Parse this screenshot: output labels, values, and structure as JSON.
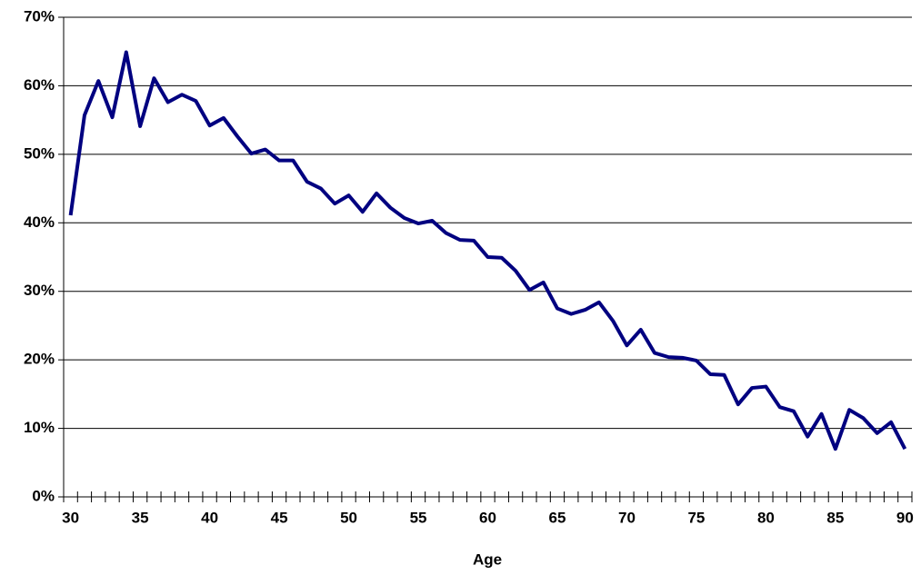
{
  "chart_data": {
    "type": "line",
    "x_label": "Age",
    "categories": [
      "30",
      null,
      null,
      null,
      null,
      "35",
      null,
      null,
      null,
      null,
      "40",
      null,
      null,
      null,
      null,
      "45",
      null,
      null,
      null,
      null,
      "50",
      null,
      null,
      null,
      null,
      "55",
      null,
      null,
      null,
      null,
      "60",
      null,
      null,
      null,
      null,
      "65",
      null,
      null,
      null,
      null,
      "70",
      null,
      null,
      null,
      null,
      "75",
      null,
      null,
      null,
      null,
      "80",
      null,
      null,
      null,
      null,
      "85",
      null,
      null,
      null,
      null,
      "90"
    ],
    "series": [
      {
        "color": "#000080",
        "values": [
          41.1,
          55.7,
          60.7,
          55.4,
          64.9,
          54.1,
          61.1,
          57.6,
          58.7,
          57.8,
          54.2,
          55.3,
          52.6,
          50.1,
          50.7,
          49.1,
          49.1,
          46.0,
          45.0,
          42.8,
          44.0,
          41.6,
          44.3,
          42.2,
          40.7,
          39.9,
          40.3,
          38.5,
          37.5,
          37.4,
          35.0,
          34.9,
          33.0,
          30.2,
          31.3,
          27.5,
          26.7,
          27.3,
          28.4,
          25.7,
          22.1,
          24.4,
          21.0,
          20.4,
          20.3,
          19.9,
          17.9,
          17.8,
          13.5,
          15.9,
          16.1,
          13.1,
          12.5,
          8.8,
          12.1,
          7.0,
          12.7,
          11.5,
          9.3,
          10.9,
          7.0
        ]
      }
    ],
    "ylim": [
      0,
      70
    ],
    "yticks": [
      {
        "value": 0,
        "label": "0%"
      },
      {
        "value": 10,
        "label": "10%"
      },
      {
        "value": 20,
        "label": "20%"
      },
      {
        "value": 30,
        "label": "30%"
      },
      {
        "value": 40,
        "label": "40%"
      },
      {
        "value": 50,
        "label": "50%"
      },
      {
        "value": 60,
        "label": "60%"
      },
      {
        "value": 70,
        "label": "70%"
      }
    ],
    "grid": true
  }
}
